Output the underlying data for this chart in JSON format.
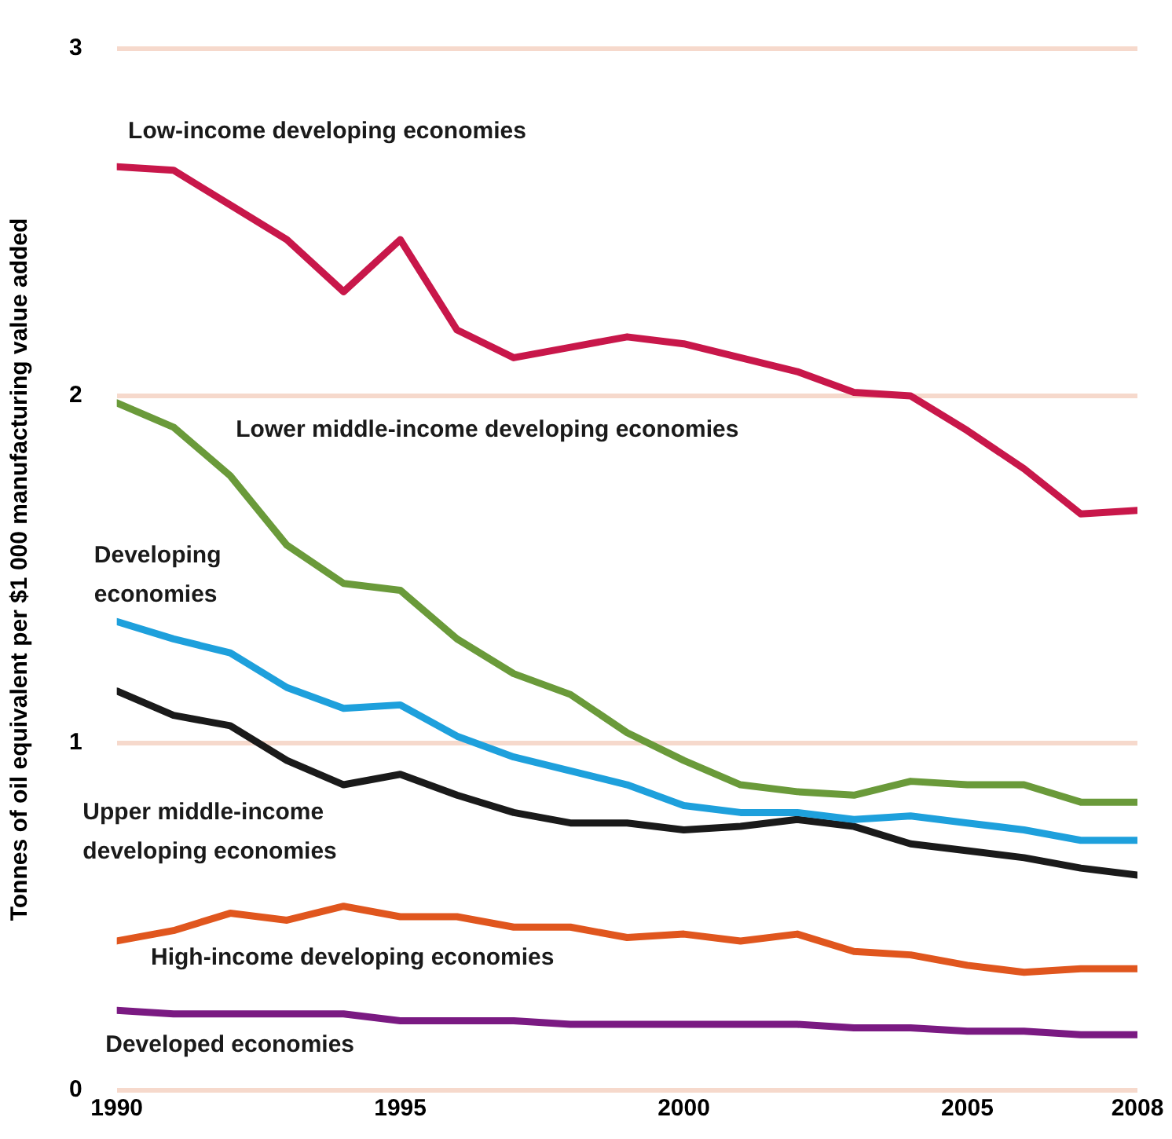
{
  "chart_data": {
    "type": "line",
    "ylabel": "Tonnes of oil equivalent per $1 000 manufacturing value added",
    "x": [
      1990,
      1991,
      1992,
      1993,
      1994,
      1995,
      1996,
      1997,
      1998,
      1999,
      2000,
      2001,
      2002,
      2003,
      2004,
      2005,
      2006,
      2007,
      2008
    ],
    "xlim": [
      1990,
      2008
    ],
    "xticks": [
      1990,
      1995,
      2000,
      2005,
      2008
    ],
    "ylim": [
      0,
      3
    ],
    "yticks": [
      0,
      1,
      2,
      3
    ],
    "grid": "y",
    "legend": false,
    "marker": "none",
    "line_style": "solid",
    "series": [
      {
        "name": "Low-income developing economies",
        "color": "#c8174a",
        "values": [
          2.66,
          2.65,
          2.55,
          2.45,
          2.3,
          2.45,
          2.19,
          2.11,
          2.14,
          2.17,
          2.15,
          2.11,
          2.07,
          2.01,
          2.0,
          1.9,
          1.79,
          1.66,
          1.67
        ]
      },
      {
        "name": "Lower middle-income developing economies",
        "color": "#6a9a3a",
        "values": [
          1.98,
          1.91,
          1.77,
          1.57,
          1.46,
          1.44,
          1.3,
          1.2,
          1.14,
          1.03,
          0.95,
          0.88,
          0.86,
          0.85,
          0.89,
          0.88,
          0.88,
          0.83,
          0.83
        ]
      },
      {
        "name": "Developing economies",
        "color": "#1ea0dc",
        "values": [
          1.35,
          1.3,
          1.26,
          1.16,
          1.1,
          1.11,
          1.02,
          0.96,
          0.92,
          0.88,
          0.82,
          0.8,
          0.8,
          0.78,
          0.79,
          0.77,
          0.75,
          0.72,
          0.72
        ]
      },
      {
        "name": "Upper middle-income developing economies",
        "color": "#1a1a1a",
        "values": [
          1.15,
          1.08,
          1.05,
          0.95,
          0.88,
          0.91,
          0.85,
          0.8,
          0.77,
          0.77,
          0.75,
          0.76,
          0.78,
          0.76,
          0.71,
          0.69,
          0.67,
          0.64,
          0.62
        ]
      },
      {
        "name": "High-income developing economies",
        "color": "#e0561e",
        "values": [
          0.43,
          0.46,
          0.51,
          0.49,
          0.53,
          0.5,
          0.5,
          0.47,
          0.47,
          0.44,
          0.45,
          0.43,
          0.45,
          0.4,
          0.39,
          0.36,
          0.34,
          0.35,
          0.35
        ]
      },
      {
        "name": "Developed economies",
        "color": "#7a1a82",
        "values": [
          0.23,
          0.22,
          0.22,
          0.22,
          0.22,
          0.2,
          0.2,
          0.2,
          0.19,
          0.19,
          0.19,
          0.19,
          0.19,
          0.18,
          0.18,
          0.17,
          0.17,
          0.16,
          0.16
        ]
      }
    ]
  }
}
